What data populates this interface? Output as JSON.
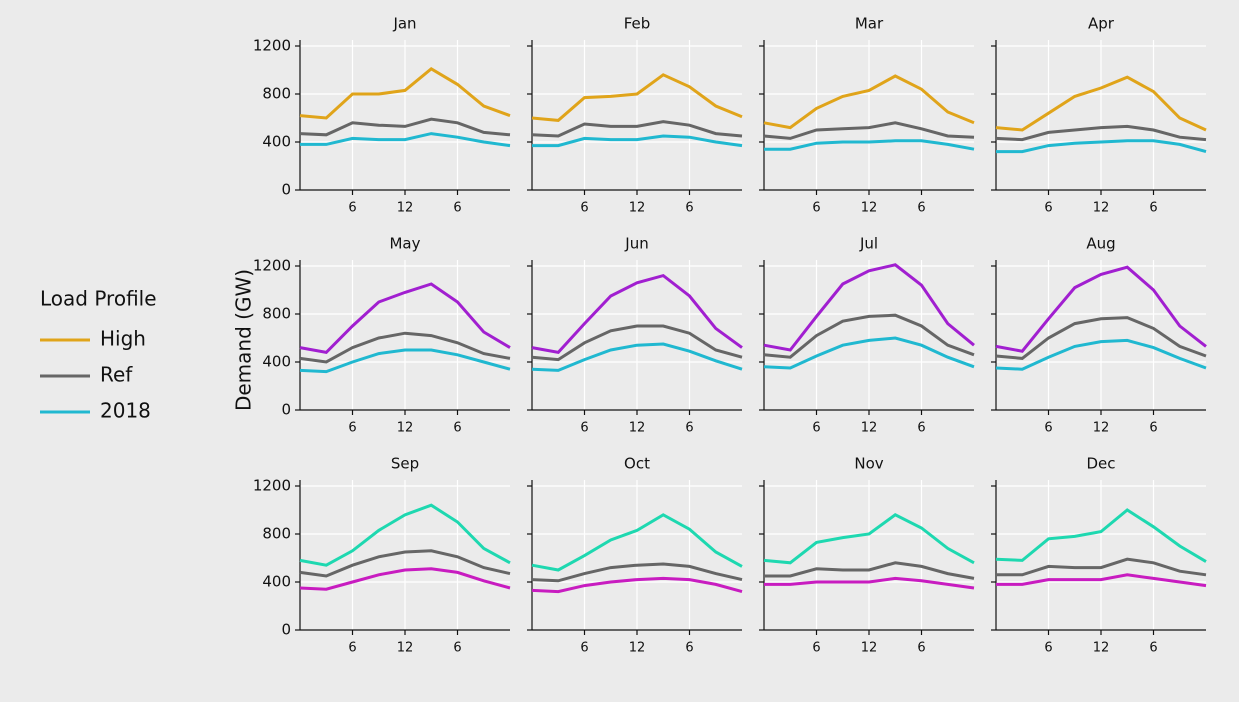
{
  "legend_title": "Load Profile",
  "y_label": "Demand (GW)",
  "chart_data": [
    {
      "type": "line",
      "title": "Jan",
      "x": [
        0,
        3,
        6,
        9,
        12,
        15,
        18,
        21,
        24
      ],
      "xlim": [
        0,
        24
      ],
      "xticks": [
        6,
        12,
        {
          "value": 18,
          "label": "6"
        }
      ],
      "ylim": [
        0,
        1250
      ],
      "yticks": [
        0,
        400,
        800,
        1200
      ],
      "grid": true,
      "series": [
        {
          "name": "High",
          "color": "#e0a41a",
          "values": [
            620,
            600,
            800,
            800,
            830,
            1010,
            880,
            700,
            620
          ]
        },
        {
          "name": "Ref",
          "color": "#666666",
          "values": [
            470,
            460,
            560,
            540,
            530,
            590,
            560,
            480,
            460
          ]
        },
        {
          "name": "2018",
          "color": "#20b8d0",
          "values": [
            380,
            380,
            430,
            420,
            420,
            470,
            440,
            400,
            370
          ]
        }
      ]
    },
    {
      "type": "line",
      "title": "Feb",
      "x": [
        0,
        3,
        6,
        9,
        12,
        15,
        18,
        21,
        24
      ],
      "xlim": [
        0,
        24
      ],
      "xticks": [
        6,
        12,
        {
          "value": 18,
          "label": "6"
        }
      ],
      "ylim": [
        0,
        1250
      ],
      "yticks": [
        0,
        400,
        800,
        1200
      ],
      "grid": true,
      "series": [
        {
          "name": "High",
          "color": "#e0a41a",
          "values": [
            600,
            580,
            770,
            780,
            800,
            960,
            860,
            700,
            610
          ]
        },
        {
          "name": "Ref",
          "color": "#666666",
          "values": [
            460,
            450,
            550,
            530,
            530,
            570,
            540,
            470,
            450
          ]
        },
        {
          "name": "2018",
          "color": "#20b8d0",
          "values": [
            370,
            370,
            430,
            420,
            420,
            450,
            440,
            400,
            370
          ]
        }
      ]
    },
    {
      "type": "line",
      "title": "Mar",
      "x": [
        0,
        3,
        6,
        9,
        12,
        15,
        18,
        21,
        24
      ],
      "xlim": [
        0,
        24
      ],
      "xticks": [
        6,
        12,
        {
          "value": 18,
          "label": "6"
        }
      ],
      "ylim": [
        0,
        1250
      ],
      "yticks": [
        0,
        400,
        800,
        1200
      ],
      "grid": true,
      "series": [
        {
          "name": "High",
          "color": "#e0a41a",
          "values": [
            560,
            520,
            680,
            780,
            830,
            950,
            840,
            650,
            560
          ]
        },
        {
          "name": "Ref",
          "color": "#666666",
          "values": [
            450,
            430,
            500,
            510,
            520,
            560,
            510,
            450,
            440
          ]
        },
        {
          "name": "2018",
          "color": "#20b8d0",
          "values": [
            340,
            340,
            390,
            400,
            400,
            410,
            410,
            380,
            340
          ]
        }
      ]
    },
    {
      "type": "line",
      "title": "Apr",
      "x": [
        0,
        3,
        6,
        9,
        12,
        15,
        18,
        21,
        24
      ],
      "xlim": [
        0,
        24
      ],
      "xticks": [
        6,
        12,
        {
          "value": 18,
          "label": "6"
        }
      ],
      "ylim": [
        0,
        1250
      ],
      "yticks": [
        0,
        400,
        800,
        1200
      ],
      "grid": true,
      "series": [
        {
          "name": "High",
          "color": "#e0a41a",
          "values": [
            520,
            500,
            640,
            780,
            850,
            940,
            820,
            600,
            500
          ]
        },
        {
          "name": "Ref",
          "color": "#666666",
          "values": [
            430,
            420,
            480,
            500,
            520,
            530,
            500,
            440,
            420
          ]
        },
        {
          "name": "2018",
          "color": "#20b8d0",
          "values": [
            320,
            320,
            370,
            390,
            400,
            410,
            410,
            380,
            320
          ]
        }
      ]
    },
    {
      "type": "line",
      "title": "May",
      "x": [
        0,
        3,
        6,
        9,
        12,
        15,
        18,
        21,
        24
      ],
      "xlim": [
        0,
        24
      ],
      "xticks": [
        6,
        12,
        {
          "value": 18,
          "label": "6"
        }
      ],
      "ylim": [
        0,
        1250
      ],
      "yticks": [
        0,
        400,
        800,
        1200
      ],
      "grid": true,
      "series": [
        {
          "name": "High",
          "color": "#a11fd0",
          "values": [
            520,
            480,
            700,
            900,
            980,
            1050,
            900,
            650,
            520
          ]
        },
        {
          "name": "Ref",
          "color": "#666666",
          "values": [
            430,
            400,
            520,
            600,
            640,
            620,
            560,
            470,
            430
          ]
        },
        {
          "name": "2018",
          "color": "#20b8d0",
          "values": [
            330,
            320,
            400,
            470,
            500,
            500,
            460,
            400,
            340
          ]
        }
      ]
    },
    {
      "type": "line",
      "title": "Jun",
      "x": [
        0,
        3,
        6,
        9,
        12,
        15,
        18,
        21,
        24
      ],
      "xlim": [
        0,
        24
      ],
      "xticks": [
        6,
        12,
        {
          "value": 18,
          "label": "6"
        }
      ],
      "ylim": [
        0,
        1250
      ],
      "yticks": [
        0,
        400,
        800,
        1200
      ],
      "grid": true,
      "series": [
        {
          "name": "High",
          "color": "#a11fd0",
          "values": [
            520,
            480,
            720,
            950,
            1060,
            1120,
            950,
            680,
            520
          ]
        },
        {
          "name": "Ref",
          "color": "#666666",
          "values": [
            440,
            420,
            560,
            660,
            700,
            700,
            640,
            500,
            440
          ]
        },
        {
          "name": "2018",
          "color": "#20b8d0",
          "values": [
            340,
            330,
            420,
            500,
            540,
            550,
            490,
            410,
            340
          ]
        }
      ]
    },
    {
      "type": "line",
      "title": "Jul",
      "x": [
        0,
        3,
        6,
        9,
        12,
        15,
        18,
        21,
        24
      ],
      "xlim": [
        0,
        24
      ],
      "xticks": [
        6,
        12,
        {
          "value": 18,
          "label": "6"
        }
      ],
      "ylim": [
        0,
        1250
      ],
      "yticks": [
        0,
        400,
        800,
        1200
      ],
      "grid": true,
      "series": [
        {
          "name": "High",
          "color": "#a11fd0",
          "values": [
            540,
            500,
            780,
            1050,
            1160,
            1210,
            1040,
            720,
            540
          ]
        },
        {
          "name": "Ref",
          "color": "#666666",
          "values": [
            460,
            440,
            620,
            740,
            780,
            790,
            700,
            540,
            460
          ]
        },
        {
          "name": "2018",
          "color": "#20b8d0",
          "values": [
            360,
            350,
            450,
            540,
            580,
            600,
            540,
            440,
            360
          ]
        }
      ]
    },
    {
      "type": "line",
      "title": "Aug",
      "x": [
        0,
        3,
        6,
        9,
        12,
        15,
        18,
        21,
        24
      ],
      "xlim": [
        0,
        24
      ],
      "xticks": [
        6,
        12,
        {
          "value": 18,
          "label": "6"
        }
      ],
      "ylim": [
        0,
        1250
      ],
      "yticks": [
        0,
        400,
        800,
        1200
      ],
      "grid": true,
      "series": [
        {
          "name": "High",
          "color": "#a11fd0",
          "values": [
            530,
            490,
            760,
            1020,
            1130,
            1190,
            1000,
            700,
            530
          ]
        },
        {
          "name": "Ref",
          "color": "#666666",
          "values": [
            450,
            430,
            600,
            720,
            760,
            770,
            680,
            530,
            450
          ]
        },
        {
          "name": "2018",
          "color": "#20b8d0",
          "values": [
            350,
            340,
            440,
            530,
            570,
            580,
            520,
            430,
            350
          ]
        }
      ]
    },
    {
      "type": "line",
      "title": "Sep",
      "x": [
        0,
        3,
        6,
        9,
        12,
        15,
        18,
        21,
        24
      ],
      "xlim": [
        0,
        24
      ],
      "xticks": [
        6,
        12,
        {
          "value": 18,
          "label": "6"
        }
      ],
      "ylim": [
        0,
        1250
      ],
      "yticks": [
        0,
        400,
        800,
        1200
      ],
      "grid": true,
      "series": [
        {
          "name": "High",
          "color": "#1ed8b0",
          "values": [
            580,
            540,
            660,
            830,
            960,
            1040,
            900,
            680,
            560
          ]
        },
        {
          "name": "Ref",
          "color": "#666666",
          "values": [
            480,
            450,
            540,
            610,
            650,
            660,
            610,
            520,
            470
          ]
        },
        {
          "name": "2018",
          "color": "#c81cc0",
          "values": [
            350,
            340,
            400,
            460,
            500,
            510,
            480,
            410,
            350
          ]
        }
      ]
    },
    {
      "type": "line",
      "title": "Oct",
      "x": [
        0,
        3,
        6,
        9,
        12,
        15,
        18,
        21,
        24
      ],
      "xlim": [
        0,
        24
      ],
      "xticks": [
        6,
        12,
        {
          "value": 18,
          "label": "6"
        }
      ],
      "ylim": [
        0,
        1250
      ],
      "yticks": [
        0,
        400,
        800,
        1200
      ],
      "grid": true,
      "series": [
        {
          "name": "High",
          "color": "#1ed8b0",
          "values": [
            540,
            500,
            620,
            750,
            830,
            960,
            840,
            650,
            530
          ]
        },
        {
          "name": "Ref",
          "color": "#666666",
          "values": [
            420,
            410,
            470,
            520,
            540,
            550,
            530,
            470,
            420
          ]
        },
        {
          "name": "2018",
          "color": "#c81cc0",
          "values": [
            330,
            320,
            370,
            400,
            420,
            430,
            420,
            380,
            320
          ]
        }
      ]
    },
    {
      "type": "line",
      "title": "Nov",
      "x": [
        0,
        3,
        6,
        9,
        12,
        15,
        18,
        21,
        24
      ],
      "xlim": [
        0,
        24
      ],
      "xticks": [
        6,
        12,
        {
          "value": 18,
          "label": "6"
        }
      ],
      "ylim": [
        0,
        1250
      ],
      "yticks": [
        0,
        400,
        800,
        1200
      ],
      "grid": true,
      "series": [
        {
          "name": "High",
          "color": "#1ed8b0",
          "values": [
            580,
            560,
            730,
            770,
            800,
            960,
            850,
            680,
            560
          ]
        },
        {
          "name": "Ref",
          "color": "#666666",
          "values": [
            450,
            450,
            510,
            500,
            500,
            560,
            530,
            470,
            430
          ]
        },
        {
          "name": "2018",
          "color": "#c81cc0",
          "values": [
            380,
            380,
            400,
            400,
            400,
            430,
            410,
            380,
            350
          ]
        }
      ]
    },
    {
      "type": "line",
      "title": "Dec",
      "x": [
        0,
        3,
        6,
        9,
        12,
        15,
        18,
        21,
        24
      ],
      "xlim": [
        0,
        24
      ],
      "xticks": [
        6,
        12,
        {
          "value": 18,
          "label": "6"
        }
      ],
      "ylim": [
        0,
        1250
      ],
      "yticks": [
        0,
        400,
        800,
        1200
      ],
      "grid": true,
      "series": [
        {
          "name": "High",
          "color": "#1ed8b0",
          "values": [
            590,
            580,
            760,
            780,
            820,
            1000,
            860,
            700,
            570
          ]
        },
        {
          "name": "Ref",
          "color": "#666666",
          "values": [
            460,
            460,
            530,
            520,
            520,
            590,
            560,
            490,
            460
          ]
        },
        {
          "name": "2018",
          "color": "#c81cc0",
          "values": [
            380,
            380,
            420,
            420,
            420,
            460,
            430,
            400,
            370
          ]
        }
      ]
    }
  ]
}
